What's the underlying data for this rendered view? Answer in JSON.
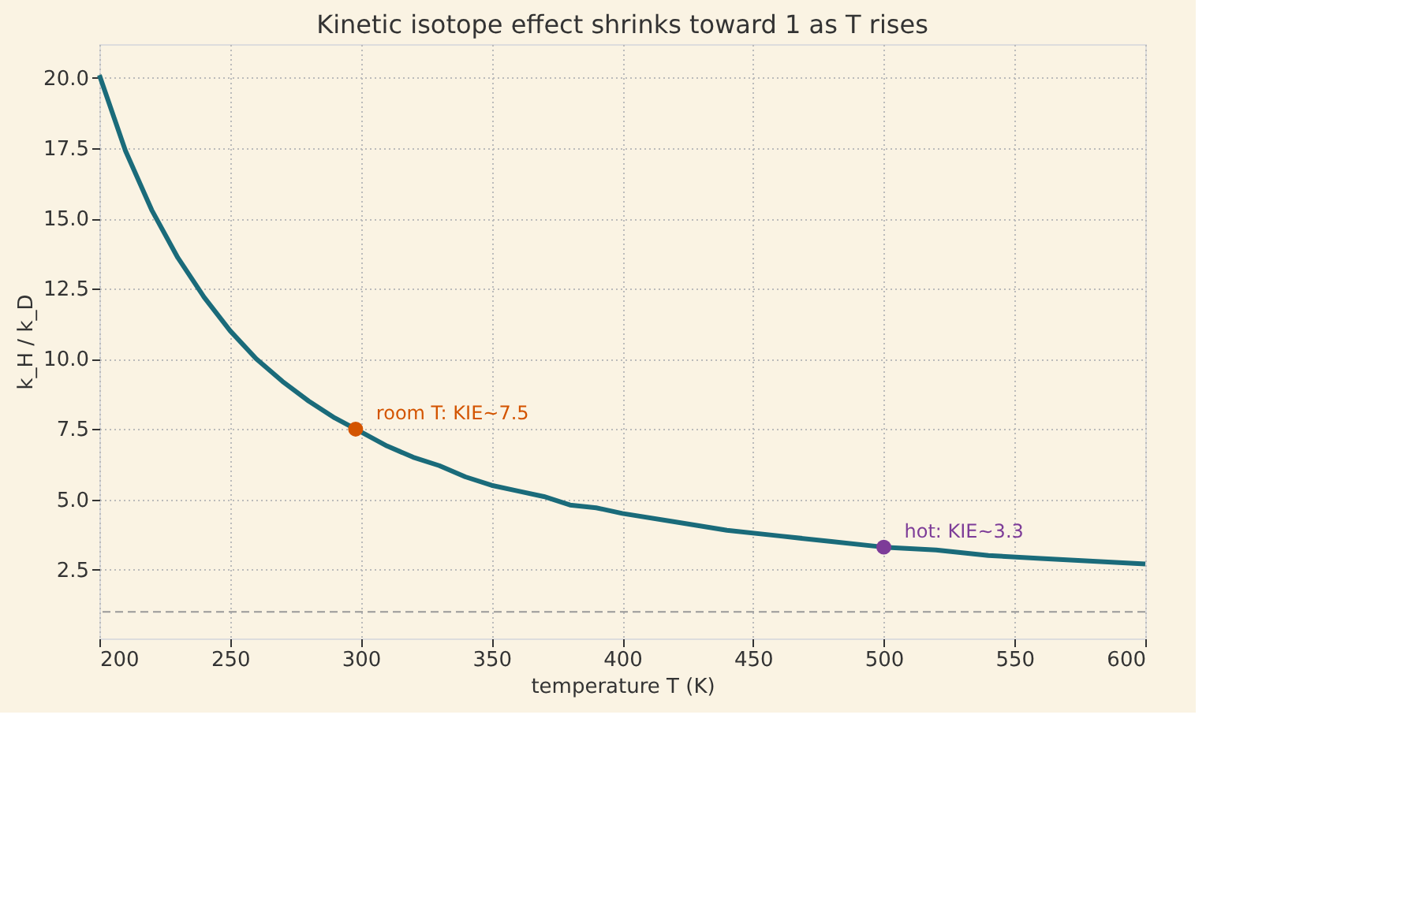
{
  "chart_data": {
    "type": "line",
    "title": "Kinetic isotope effect shrinks toward 1 as T rises",
    "xlabel": "temperature  T (K)",
    "ylabel": "k_H / k_D",
    "xlim": [
      200,
      600
    ],
    "xticks": [
      200,
      250,
      300,
      350,
      400,
      450,
      500,
      550,
      600
    ],
    "ylim": [
      0.05,
      21.2
    ],
    "yticks": [
      {
        "value": 2.5,
        "label": "2.5"
      },
      {
        "value": 5,
        "label": "5.0"
      },
      {
        "value": 7.5,
        "label": "7.5"
      },
      {
        "value": 10,
        "label": "10.0"
      },
      {
        "value": 12.5,
        "label": "12.5"
      },
      {
        "value": 15,
        "label": "15.0"
      },
      {
        "value": 17.5,
        "label": "17.5"
      },
      {
        "value": 20,
        "label": "20.0"
      }
    ],
    "grid": true,
    "line_style": "solid",
    "marker": "none",
    "series": [
      {
        "color": "#1a6b7a",
        "x": [
          200,
          210,
          220,
          230,
          240,
          250,
          260,
          270,
          280,
          290,
          300,
          310,
          320,
          330,
          340,
          350,
          360,
          370,
          380,
          390,
          400,
          420,
          440,
          460,
          480,
          500,
          520,
          540,
          560,
          580,
          600
        ],
        "values": [
          20.1,
          17.4,
          15.3,
          13.6,
          12.2,
          11.0,
          10.0,
          9.2,
          8.5,
          7.9,
          7.4,
          6.9,
          6.5,
          6.2,
          5.8,
          5.5,
          5.3,
          5.1,
          4.8,
          4.7,
          4.5,
          4.2,
          3.9,
          3.7,
          3.5,
          3.3,
          3.2,
          3.0,
          2.9,
          2.8,
          2.7
        ]
      },
      {
        "type": "scatter",
        "color": "#d35400",
        "x": [
          298
        ],
        "values": [
          7.5
        ],
        "marker": "circle"
      },
      {
        "type": "scatter",
        "color": "#7d3c98",
        "x": [
          500
        ],
        "values": [
          3.3
        ],
        "marker": "circle"
      }
    ],
    "annotations": [
      {
        "text": "room T: KIE~7.5",
        "x": 298,
        "y": 7.5
      },
      {
        "text": "hot: KIE~3.3",
        "x": 500,
        "y": 3.3
      }
    ],
    "ref_lines": [
      {
        "axis": "y",
        "value": 1,
        "color": "#999999",
        "line_style": "dashed"
      }
    ]
  }
}
